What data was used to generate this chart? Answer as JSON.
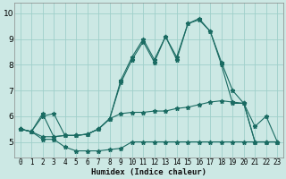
{
  "xlabel": "Humidex (Indice chaleur)",
  "x_ticks": [
    0,
    1,
    2,
    3,
    4,
    5,
    6,
    7,
    8,
    9,
    10,
    11,
    12,
    13,
    14,
    15,
    16,
    17,
    18,
    19,
    20,
    21,
    22,
    23
  ],
  "ylim": [
    4.4,
    10.4
  ],
  "xlim": [
    -0.5,
    23.5
  ],
  "yticks": [
    5,
    6,
    7,
    8,
    9,
    10
  ],
  "bg_color": "#cce8e4",
  "grid_color": "#9fcfca",
  "line_color": "#1a6b62",
  "series": {
    "line1": [
      5.5,
      5.4,
      5.1,
      5.1,
      4.8,
      4.65,
      4.65,
      4.65,
      4.7,
      4.75,
      5.0,
      5.0,
      5.0,
      5.0,
      5.0,
      5.0,
      5.0,
      5.0,
      5.0,
      5.0,
      5.0,
      5.0,
      5.0,
      5.0
    ],
    "line2": [
      5.5,
      5.4,
      6.0,
      6.1,
      5.25,
      5.25,
      5.3,
      5.5,
      5.9,
      6.1,
      6.15,
      6.15,
      6.2,
      6.2,
      6.3,
      6.35,
      6.45,
      6.55,
      6.6,
      6.55,
      6.5,
      5.6,
      6.0,
      5.0
    ],
    "line3": [
      5.5,
      5.4,
      5.2,
      5.2,
      5.25,
      5.25,
      5.3,
      5.5,
      5.9,
      7.3,
      8.2,
      8.9,
      8.1,
      9.1,
      8.2,
      9.6,
      9.75,
      9.3,
      8.0,
      6.5,
      6.5,
      5.0,
      5.0,
      5.0
    ],
    "line4": [
      5.5,
      5.4,
      6.1,
      5.2,
      5.25,
      5.25,
      5.3,
      5.5,
      5.9,
      7.4,
      8.3,
      9.0,
      8.2,
      9.1,
      8.3,
      9.6,
      9.8,
      9.3,
      8.1,
      7.0,
      6.5,
      5.0,
      5.0,
      5.0
    ]
  }
}
